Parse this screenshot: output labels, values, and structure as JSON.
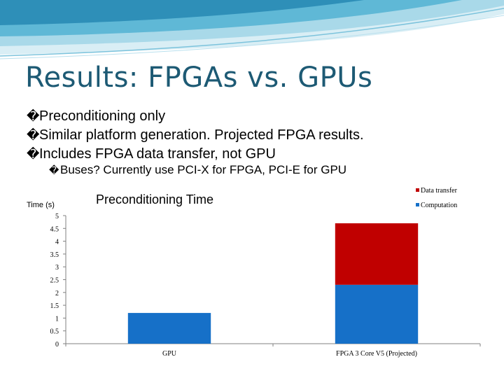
{
  "slide": {
    "title": "Results: FPGAs vs. GPUs",
    "bullets": [
      "Preconditioning only",
      "Similar platform generation. Projected FPGA results.",
      "Includes FPGA data transfer, not GPU"
    ],
    "sub_bullets": [
      "Buses? Currently use PCI-X for FPGA, PCI-E for GPU"
    ],
    "bullet_glyph": "�",
    "accent_color": "#1d5a74"
  },
  "chart_data": {
    "type": "bar",
    "stacked": true,
    "title": "Preconditioning Time",
    "ylabel": "Time (s)",
    "xlabel": "",
    "categories": [
      "GPU",
      "FPGA 3 Core V5 (Projected)"
    ],
    "series": [
      {
        "name": "Computation",
        "color": "#1670c8",
        "values": [
          1.2,
          2.3
        ]
      },
      {
        "name": "Data transfer",
        "color": "#c00000",
        "values": [
          0,
          2.4
        ]
      }
    ],
    "ylim": [
      0,
      5
    ],
    "yticks": [
      "0",
      "0.5",
      "1",
      "1.5",
      "2",
      "2.5",
      "3",
      "3.5",
      "4",
      "4.5",
      "5"
    ],
    "ytick_values": [
      0,
      0.5,
      1,
      1.5,
      2,
      2.5,
      3,
      3.5,
      4,
      4.5,
      5
    ],
    "legend": [
      "Data transfer",
      "Computation"
    ],
    "legend_position": "top-right",
    "grid": false
  }
}
